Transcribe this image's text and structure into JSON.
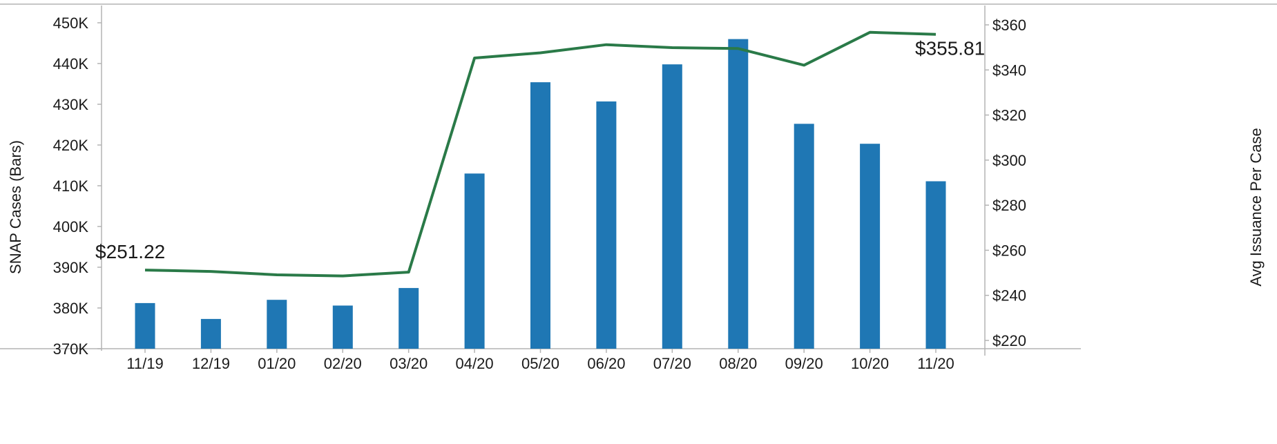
{
  "chart_data": {
    "type": "bar+line",
    "categories": [
      "11/19",
      "12/19",
      "01/20",
      "02/20",
      "03/20",
      "04/20",
      "05/20",
      "06/20",
      "07/20",
      "08/20",
      "09/20",
      "10/20",
      "11/20"
    ],
    "series": [
      {
        "name": "SNAP Cases",
        "type": "bar",
        "axis": "left",
        "color": "#1f77b4",
        "values": [
          381200,
          377300,
          382000,
          380600,
          384900,
          413000,
          435400,
          430700,
          439800,
          446000,
          425200,
          420300,
          411100
        ]
      },
      {
        "name": "Avg Issuance Per Case",
        "type": "line",
        "axis": "right",
        "color": "#2a7a48",
        "values": [
          251.22,
          250.6,
          249.1,
          248.6,
          250.3,
          345.3,
          347.6,
          351.2,
          349.9,
          349.5,
          342.1,
          356.7,
          355.81
        ]
      }
    ],
    "y_left": {
      "label": "SNAP Cases (Bars)",
      "min": 370000,
      "max": 450000,
      "ticks": [
        370000,
        380000,
        390000,
        400000,
        410000,
        420000,
        430000,
        440000,
        450000
      ],
      "tick_labels": [
        "370K",
        "380K",
        "390K",
        "400K",
        "410K",
        "420K",
        "430K",
        "440K",
        "450K"
      ]
    },
    "y_right": {
      "label": "Avg Issuance Per Case",
      "min": 220,
      "max": 360,
      "ticks": [
        220,
        240,
        260,
        280,
        300,
        320,
        340,
        360
      ],
      "tick_labels": [
        "$220",
        "$240",
        "$260",
        "$280",
        "$300",
        "$320",
        "$340",
        "$360"
      ]
    },
    "annotations": [
      {
        "text": "$251.22",
        "series": "Avg Issuance Per Case",
        "index": 0
      },
      {
        "text": "$355.81",
        "series": "Avg Issuance Per Case",
        "index": 12
      }
    ],
    "grid": false,
    "legend": "none"
  }
}
